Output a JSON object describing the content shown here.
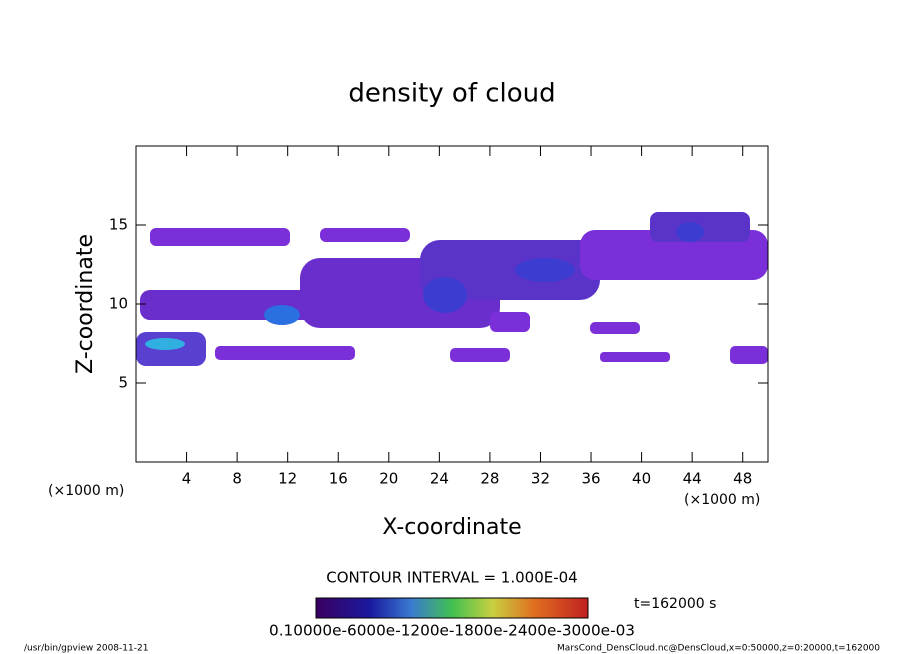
{
  "chart_data": {
    "type": "contour",
    "title": "density of cloud",
    "x_label": "X-coordinate",
    "y_label": "Z-coordinate",
    "x_unit_left": "(×1000 m)",
    "x_unit_right": "(×1000 m)",
    "xlim": [
      0,
      50
    ],
    "xticks": [
      4,
      8,
      12,
      16,
      20,
      24,
      28,
      32,
      36,
      40,
      44,
      48
    ],
    "ylim": [
      0,
      20
    ],
    "yticks": [
      5,
      10,
      15
    ],
    "contour_interval": "CONTOUR INTERVAL = 1.000E-04",
    "time": "t=162000 s",
    "colorbar_labels": "0.10000e-6000e-1200e-1800e-2400e-3000e-03",
    "footer_left": "/usr/bin/gpview   2008-11-21",
    "footer_right": "MarsCond_DensCloud.nc@DensCloud,x=0:50000,z=0:20000,t=162000"
  }
}
